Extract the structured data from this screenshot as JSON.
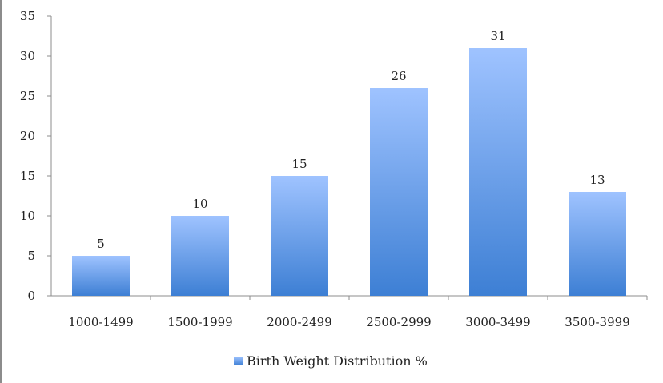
{
  "chart_data": {
    "type": "bar",
    "title": "",
    "xlabel": "",
    "ylabel": "",
    "categories": [
      "1000-1499",
      "1500-1999",
      "2000-2499",
      "2500-2999",
      "3000-3499",
      "3500-3999"
    ],
    "series": [
      {
        "name": "Birth Weight Distribution %",
        "values": [
          5,
          10,
          15,
          26,
          31,
          13
        ]
      }
    ],
    "ylim": [
      0,
      35
    ],
    "yticks": [
      0,
      5,
      10,
      15,
      20,
      25,
      30,
      35
    ],
    "data_labels": [
      "5",
      "10",
      "15",
      "26",
      "31",
      "13"
    ],
    "legend_position": "bottom",
    "grid": false,
    "colors": {
      "bar_top": "#9fc3ff",
      "bar_bottom": "#3d7fd4",
      "axis": "#8c8c8c"
    }
  }
}
